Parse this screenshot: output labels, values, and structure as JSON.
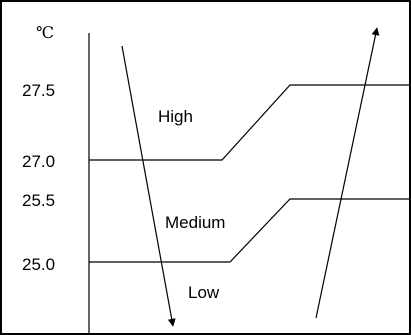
{
  "diagram": {
    "unit_label": "℃",
    "y_ticks": [
      "27.5",
      "27.0",
      "25.5",
      "25.0"
    ],
    "bands": {
      "high": "High",
      "medium": "Medium",
      "low": "Low"
    }
  }
}
